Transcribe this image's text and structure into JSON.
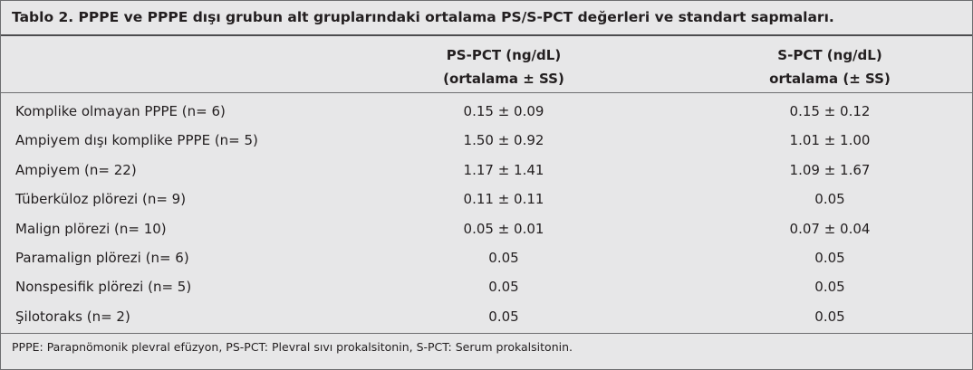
{
  "title": "Tablo 2. PPPE ve PPPE dışı grubun alt gruplarındaki ortalama PS/S-PCT değerleri ve standart sapmaları.",
  "table": {
    "columns": [
      [
        "PS-PCT (ng/dL)",
        "(ortalama ± SS)"
      ],
      [
        "S-PCT (ng/dL)",
        "ortalama (± SS)"
      ]
    ],
    "rows": [
      [
        "Komplike olmayan PPPE (n= 6)",
        "0.15 ± 0.09",
        "0.15 ± 0.12"
      ],
      [
        "Ampiyem dışı komplike PPPE (n= 5)",
        "1.50 ± 0.92",
        "1.01 ± 1.00"
      ],
      [
        "Ampiyem (n= 22)",
        "1.17 ± 1.41",
        "1.09 ± 1.67"
      ],
      [
        "Tüberküloz plörezi (n= 9)",
        "0.11 ± 0.11",
        "0.05"
      ],
      [
        "Malign plörezi (n= 10)",
        "0.05 ± 0.01",
        "0.07 ± 0.04"
      ],
      [
        "Paramalign plörezi (n= 6)",
        "0.05",
        "0.05"
      ],
      [
        "Nonspesifik plörezi (n= 5)",
        "0.05",
        "0.05"
      ],
      [
        "Şilotoraks (n= 2)",
        "0.05",
        "0.05"
      ]
    ]
  },
  "footnote": "PPPE: Parapnömonik plevral efüzyon, PS-PCT: Plevral sıvı prokalsitonin, S-PCT: Serum prokalsitonin."
}
